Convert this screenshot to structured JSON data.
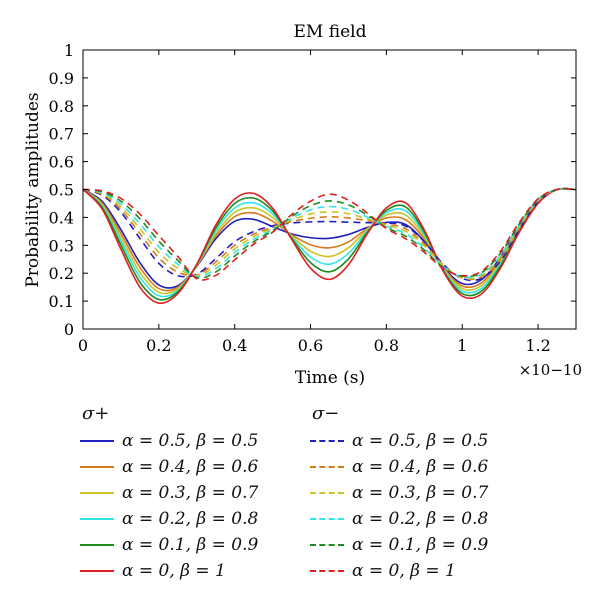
{
  "chart_data": {
    "type": "line",
    "title": "EM field",
    "xlabel": "Time (s)",
    "ylabel": "Probability amplitudes",
    "x_exponent_label": "×10−10",
    "xlim": [
      0,
      1.3
    ],
    "ylim": [
      0,
      1
    ],
    "xticks": [
      "0",
      "0.2",
      "0.4",
      "0.6",
      "0.8",
      "1",
      "1.2"
    ],
    "yticks": [
      "0",
      "0.1",
      "0.2",
      "0.3",
      "0.4",
      "0.5",
      "0.6",
      "0.7",
      "0.8",
      "0.9",
      "1"
    ],
    "grid": false,
    "legend_position": "below",
    "x": [
      0,
      0.05,
      0.1,
      0.15,
      0.2,
      0.25,
      0.3,
      0.35,
      0.4,
      0.45,
      0.5,
      0.55,
      0.6,
      0.65,
      0.7,
      0.75,
      0.8,
      0.85,
      0.9,
      0.95,
      1.0,
      1.05,
      1.1,
      1.15,
      1.2,
      1.25,
      1.3
    ],
    "series": [
      {
        "group": "σ+",
        "label": "α = 0.5, β = 0.5",
        "color": "#1f1fbf",
        "dash": "solid",
        "values": [
          0.5,
          0.458,
          0.356,
          0.238,
          0.158,
          0.155,
          0.225,
          0.323,
          0.386,
          0.393,
          0.367,
          0.341,
          0.327,
          0.325,
          0.339,
          0.364,
          0.382,
          0.375,
          0.314,
          0.222,
          0.163,
          0.176,
          0.256,
          0.367,
          0.462,
          0.5,
          0.5
        ]
      },
      {
        "group": "σ+",
        "label": "α = 0.4, β = 0.6",
        "color": "#d67a1e",
        "dash": "solid",
        "values": [
          0.5,
          0.452,
          0.342,
          0.221,
          0.145,
          0.15,
          0.227,
          0.332,
          0.403,
          0.416,
          0.386,
          0.338,
          0.302,
          0.291,
          0.312,
          0.361,
          0.398,
          0.392,
          0.323,
          0.22,
          0.154,
          0.165,
          0.248,
          0.363,
          0.46,
          0.5,
          0.5
        ]
      },
      {
        "group": "σ+",
        "label": "α = 0.3, β = 0.7",
        "color": "#c9c424",
        "dash": "solid",
        "values": [
          0.5,
          0.447,
          0.328,
          0.203,
          0.132,
          0.144,
          0.228,
          0.341,
          0.418,
          0.434,
          0.4,
          0.334,
          0.279,
          0.26,
          0.291,
          0.357,
          0.408,
          0.409,
          0.331,
          0.217,
          0.145,
          0.155,
          0.24,
          0.359,
          0.457,
          0.5,
          0.5
        ]
      },
      {
        "group": "σ+",
        "label": "α = 0.2, β = 0.8",
        "color": "#33e5e5",
        "dash": "solid",
        "values": [
          0.5,
          0.442,
          0.315,
          0.186,
          0.119,
          0.138,
          0.23,
          0.352,
          0.434,
          0.452,
          0.412,
          0.33,
          0.258,
          0.232,
          0.271,
          0.352,
          0.417,
          0.424,
          0.339,
          0.214,
          0.136,
          0.145,
          0.232,
          0.354,
          0.455,
          0.5,
          0.5
        ]
      },
      {
        "group": "σ+",
        "label": "α = 0.1, β = 0.9",
        "color": "#1f8a1f",
        "dash": "solid",
        "values": [
          0.5,
          0.437,
          0.301,
          0.168,
          0.106,
          0.133,
          0.231,
          0.362,
          0.45,
          0.469,
          0.423,
          0.326,
          0.238,
          0.205,
          0.251,
          0.347,
          0.425,
          0.438,
          0.347,
          0.21,
          0.127,
          0.135,
          0.224,
          0.35,
          0.452,
          0.5,
          0.5
        ]
      },
      {
        "group": "σ+",
        "label": "α = 0, β = 1",
        "color": "#e02020",
        "dash": "solid",
        "values": [
          0.5,
          0.431,
          0.286,
          0.15,
          0.093,
          0.127,
          0.232,
          0.372,
          0.466,
          0.486,
          0.433,
          0.322,
          0.218,
          0.178,
          0.23,
          0.342,
          0.434,
          0.453,
          0.355,
          0.207,
          0.118,
          0.125,
          0.216,
          0.346,
          0.45,
          0.5,
          0.5
        ]
      },
      {
        "group": "σ−",
        "label": "α = 0.5, β = 0.5",
        "color": "#1f1fbf",
        "dash": "dashed",
        "values": [
          0.5,
          0.48,
          0.418,
          0.325,
          0.235,
          0.191,
          0.196,
          0.252,
          0.313,
          0.349,
          0.37,
          0.38,
          0.384,
          0.385,
          0.383,
          0.381,
          0.38,
          0.369,
          0.313,
          0.232,
          0.181,
          0.181,
          0.242,
          0.356,
          0.457,
          0.5,
          0.5
        ]
      },
      {
        "group": "σ−",
        "label": "α = 0.4, β = 0.6",
        "color": "#d67a1e",
        "dash": "dashed",
        "values": [
          0.5,
          0.483,
          0.428,
          0.342,
          0.255,
          0.204,
          0.193,
          0.24,
          0.3,
          0.34,
          0.365,
          0.385,
          0.397,
          0.402,
          0.398,
          0.388,
          0.376,
          0.36,
          0.305,
          0.229,
          0.183,
          0.186,
          0.249,
          0.361,
          0.459,
          0.5,
          0.5
        ]
      },
      {
        "group": "σ−",
        "label": "α = 0.3, β = 0.7",
        "color": "#c9c424",
        "dash": "dashed",
        "values": [
          0.5,
          0.486,
          0.438,
          0.36,
          0.275,
          0.218,
          0.19,
          0.228,
          0.287,
          0.331,
          0.361,
          0.391,
          0.412,
          0.42,
          0.413,
          0.394,
          0.372,
          0.351,
          0.298,
          0.226,
          0.185,
          0.191,
          0.256,
          0.366,
          0.461,
          0.5,
          0.5
        ]
      },
      {
        "group": "σ−",
        "label": "α = 0.2, β = 0.8",
        "color": "#33e5e5",
        "dash": "dashed",
        "values": [
          0.5,
          0.489,
          0.448,
          0.377,
          0.295,
          0.232,
          0.187,
          0.216,
          0.274,
          0.322,
          0.356,
          0.397,
          0.427,
          0.439,
          0.429,
          0.401,
          0.368,
          0.342,
          0.29,
          0.223,
          0.187,
          0.196,
          0.263,
          0.371,
          0.463,
          0.5,
          0.5
        ]
      },
      {
        "group": "σ−",
        "label": "α = 0.1, β = 0.9",
        "color": "#1f8a1f",
        "dash": "dashed",
        "values": [
          0.5,
          0.492,
          0.458,
          0.395,
          0.315,
          0.246,
          0.184,
          0.204,
          0.261,
          0.313,
          0.352,
          0.403,
          0.442,
          0.459,
          0.445,
          0.408,
          0.364,
          0.333,
          0.283,
          0.22,
          0.189,
          0.201,
          0.27,
          0.376,
          0.465,
          0.5,
          0.5
        ]
      },
      {
        "group": "σ−",
        "label": "α = 0, β = 1",
        "color": "#e02020",
        "dash": "dashed",
        "values": [
          0.5,
          0.495,
          0.468,
          0.412,
          0.335,
          0.26,
          0.18,
          0.192,
          0.248,
          0.304,
          0.347,
          0.41,
          0.458,
          0.483,
          0.462,
          0.415,
          0.36,
          0.324,
          0.275,
          0.217,
          0.191,
          0.206,
          0.277,
          0.381,
          0.467,
          0.5,
          0.5
        ]
      }
    ]
  },
  "legend": {
    "left_title": "σ+",
    "right_title": "σ−"
  }
}
